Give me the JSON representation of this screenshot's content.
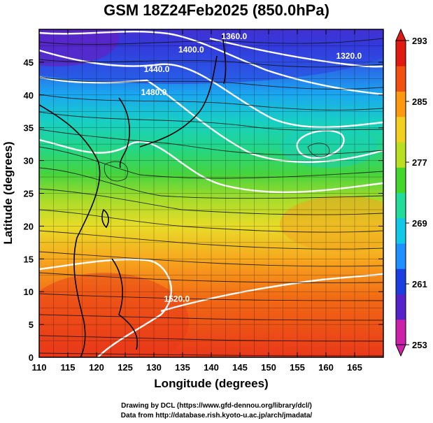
{
  "title": "GSM 18Z24Feb2025 (850.0hPa)",
  "chart_data": {
    "type": "heatmap",
    "title": "GSM 18Z24Feb2025 (850.0hPa)",
    "xlabel": "Longitude (degrees)",
    "ylabel": "Latitude  (degrees)",
    "xlim": [
      110,
      170
    ],
    "ylim": [
      0,
      50
    ],
    "x_ticks": [
      "110",
      "115",
      "120",
      "125",
      "130",
      "135",
      "140",
      "145",
      "150",
      "155",
      "160",
      "165"
    ],
    "y_ticks": [
      "0",
      "5",
      "10",
      "15",
      "20",
      "25",
      "30",
      "35",
      "40",
      "45"
    ],
    "colorbar": {
      "min": 253,
      "max": 293,
      "ticks": [
        "253",
        "261",
        "269",
        "277",
        "285",
        "293"
      ],
      "colors": [
        "#cc22aa",
        "#5522cc",
        "#1b3ee0",
        "#1e90ff",
        "#10c8e8",
        "#22dd99",
        "#44d62a",
        "#b8e020",
        "#f2d020",
        "#ff9a10",
        "#f05010",
        "#e01a10"
      ]
    },
    "contours": [
      {
        "label": "1360.0",
        "lon": 144,
        "lat": 48.5
      },
      {
        "label": "1400.0",
        "lon": 136.5,
        "lat": 46.5
      },
      {
        "label": "1320.0",
        "lon": 164,
        "lat": 45.5
      },
      {
        "label": "1440.0",
        "lon": 130.5,
        "lat": 43.5
      },
      {
        "label": "1480.0",
        "lon": 130,
        "lat": 40.0
      },
      {
        "label": "1520.0",
        "lon": 134,
        "lat": 8.5
      }
    ],
    "grid": true
  },
  "credits": {
    "line1": "Drawing by DCL (https://www.gfd-dennou.org/library/dcl/)",
    "line2": "Data from http://database.rish.kyoto-u.ac.jp/arch/jmadata/"
  }
}
